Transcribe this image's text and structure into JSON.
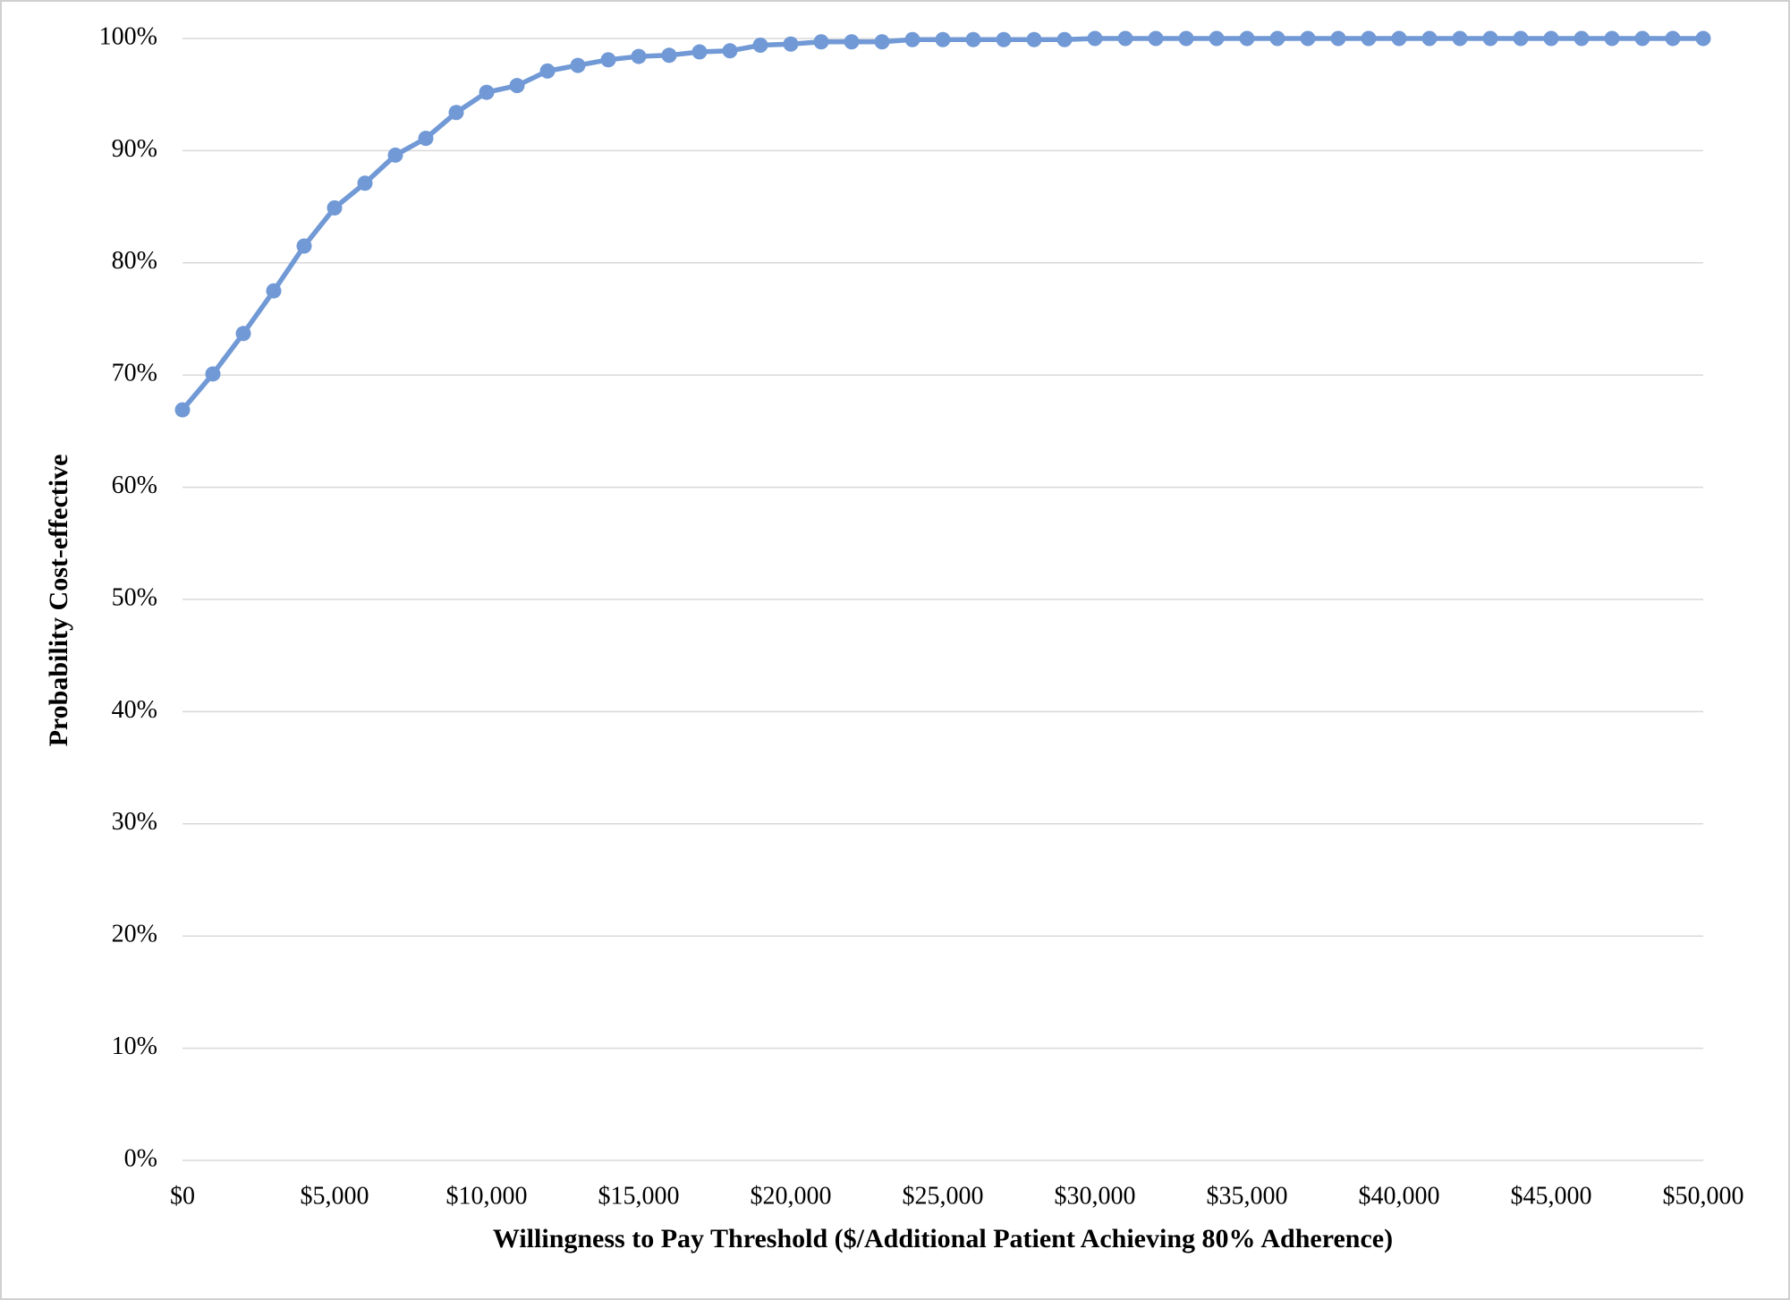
{
  "chart_data": {
    "type": "line",
    "x_label": "Willingness to Pay Threshold ($/Additional Patient Achieving 80% Adherence)",
    "y_label": "Probability Cost-effective",
    "x": [
      0,
      1000,
      2000,
      3000,
      4000,
      5000,
      6000,
      7000,
      8000,
      9000,
      10000,
      11000,
      12000,
      13000,
      14000,
      15000,
      16000,
      17000,
      18000,
      19000,
      20000,
      21000,
      22000,
      23000,
      24000,
      25000,
      26000,
      27000,
      28000,
      29000,
      30000,
      31000,
      32000,
      33000,
      34000,
      35000,
      36000,
      37000,
      38000,
      39000,
      40000,
      41000,
      42000,
      43000,
      44000,
      45000,
      46000,
      47000,
      48000,
      49000,
      50000
    ],
    "series": [
      {
        "name": "Probability Cost-effective",
        "color": "#7199d6",
        "values": [
          66.9,
          70.1,
          73.7,
          77.5,
          81.5,
          84.9,
          87.1,
          89.6,
          91.1,
          93.4,
          95.2,
          95.8,
          97.1,
          97.6,
          98.1,
          98.4,
          98.5,
          98.8,
          98.9,
          99.4,
          99.5,
          99.7,
          99.7,
          99.7,
          99.9,
          99.9,
          99.9,
          99.9,
          99.9,
          99.9,
          100,
          100,
          100,
          100,
          100,
          100,
          100,
          100,
          100,
          100,
          100,
          100,
          100,
          100,
          100,
          100,
          100,
          100,
          100,
          100,
          100
        ]
      }
    ],
    "xlim": [
      0,
      50000
    ],
    "xticks": [
      {
        "value": 0,
        "label": "$0"
      },
      {
        "value": 5000,
        "label": "$5,000"
      },
      {
        "value": 10000,
        "label": "$10,000"
      },
      {
        "value": 15000,
        "label": "$15,000"
      },
      {
        "value": 20000,
        "label": "$20,000"
      },
      {
        "value": 25000,
        "label": "$25,000"
      },
      {
        "value": 30000,
        "label": "$30,000"
      },
      {
        "value": 35000,
        "label": "$35,000"
      },
      {
        "value": 40000,
        "label": "$40,000"
      },
      {
        "value": 45000,
        "label": "$45,000"
      },
      {
        "value": 50000,
        "label": "$50,000"
      }
    ],
    "ylim": [
      0,
      100
    ],
    "yticks": [
      {
        "value": 0,
        "label": "0%"
      },
      {
        "value": 10,
        "label": "10%"
      },
      {
        "value": 20,
        "label": "20%"
      },
      {
        "value": 30,
        "label": "30%"
      },
      {
        "value": 40,
        "label": "40%"
      },
      {
        "value": 50,
        "label": "50%"
      },
      {
        "value": 60,
        "label": "60%"
      },
      {
        "value": 70,
        "label": "70%"
      },
      {
        "value": 80,
        "label": "80%"
      },
      {
        "value": 90,
        "label": "90%"
      },
      {
        "value": 100,
        "label": "100%"
      }
    ],
    "grid": true
  }
}
